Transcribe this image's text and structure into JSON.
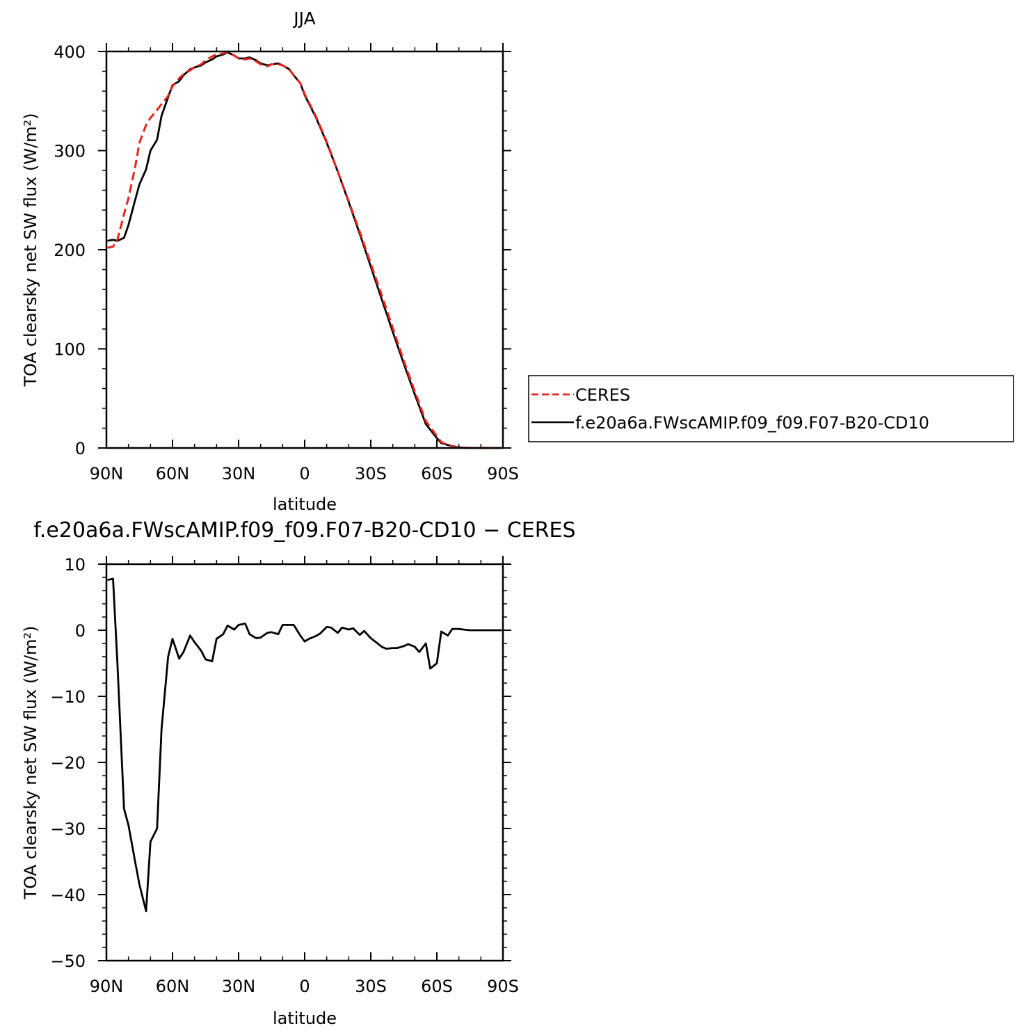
{
  "chart_data": [
    {
      "type": "line",
      "title": "JJA",
      "xlabel": "latitude",
      "ylabel": "TOA clearsky net SW flux (W/m²)",
      "xlim": [
        90,
        -90
      ],
      "ylim": [
        0,
        400
      ],
      "xticks": [
        "90N",
        "60N",
        "30N",
        "0",
        "30S",
        "60S",
        "90S"
      ],
      "yticks": [
        "0",
        "100",
        "200",
        "300",
        "400"
      ],
      "legend_position": "right",
      "series": [
        {
          "name": "CERES",
          "color": "#e8221c",
          "dash": "dashed",
          "x": [
            89.5,
            87,
            85,
            82,
            80,
            77,
            75,
            72,
            70,
            67,
            65,
            62,
            60,
            57,
            55,
            52,
            50,
            47,
            45,
            42,
            40,
            37,
            35,
            32,
            30,
            27,
            25,
            22,
            20,
            17,
            15,
            12,
            10,
            7,
            5,
            2,
            0,
            -5,
            -10,
            -15,
            -20,
            -25,
            -30,
            -35,
            -40,
            -45,
            -50,
            -55,
            -60,
            -62,
            -65,
            -68,
            -70,
            -72,
            -75,
            -78,
            -80,
            -85,
            -89.5
          ],
          "y": [
            202,
            203,
            210,
            236,
            252,
            283,
            308,
            326,
            333,
            341,
            347,
            355,
            365,
            373,
            377,
            381,
            384,
            387,
            391,
            395,
            397,
            398,
            399,
            396,
            393,
            392,
            393,
            390,
            387,
            385,
            387,
            387,
            386,
            382,
            376,
            368,
            357,
            335,
            309,
            279,
            249,
            218,
            186,
            154,
            121,
            88,
            57,
            27,
            12,
            6,
            3,
            1,
            0.5,
            0.3,
            0.1,
            0,
            0,
            0,
            0
          ]
        },
        {
          "name": "f.e20a6a.FWscAMIP.f09_f09.F07-B20-CD10",
          "color": "#000000",
          "dash": "solid",
          "x": [
            89.5,
            87,
            85,
            82,
            80,
            77,
            75,
            72,
            70,
            67,
            65,
            62,
            60,
            57,
            55,
            52,
            50,
            47,
            45,
            42,
            40,
            37,
            35,
            32,
            30,
            27,
            25,
            22,
            20,
            17,
            15,
            12,
            10,
            7,
            5,
            2,
            0,
            -5,
            -10,
            -15,
            -20,
            -25,
            -30,
            -35,
            -40,
            -45,
            -50,
            -55,
            -60,
            -62,
            -65,
            -68,
            -70,
            -72,
            -75,
            -78,
            -80,
            -85,
            -89.5
          ],
          "y": [
            209,
            210,
            209,
            212,
            225,
            250,
            266,
            281,
            300,
            311,
            335,
            354,
            366,
            370,
            376,
            382,
            384,
            386,
            389,
            392,
            395,
            397,
            399,
            396,
            393,
            393,
            394,
            391,
            388,
            386,
            387,
            388,
            386,
            382,
            376,
            368,
            356,
            334,
            308,
            279,
            248,
            216,
            183,
            150,
            117,
            85,
            54,
            24,
            10,
            5,
            3,
            1.5,
            0.5,
            0.3,
            0.1,
            0,
            0,
            0,
            0
          ]
        }
      ]
    },
    {
      "type": "line",
      "title": "f.e20a6a.FWscAMIP.f09_f09.F07-B20-CD10 − CERES",
      "xlabel": "latitude",
      "ylabel": "TOA clearsky net SW flux (W/m²)",
      "xlim": [
        90,
        -90
      ],
      "ylim": [
        -50,
        10
      ],
      "xticks": [
        "90N",
        "60N",
        "30N",
        "0",
        "30S",
        "60S",
        "90S"
      ],
      "yticks": [
        "−50",
        "−40",
        "−30",
        "−20",
        "−10",
        "0",
        "10"
      ],
      "series": [
        {
          "color": "#000000",
          "dash": "solid",
          "x": [
            89.5,
            87,
            85,
            82,
            80,
            77,
            75,
            72,
            70,
            67,
            65,
            62,
            60,
            57,
            55,
            52,
            50,
            47,
            45,
            42,
            40,
            37,
            35,
            32,
            30,
            27,
            25,
            22,
            20,
            17,
            15,
            12,
            10,
            7,
            5,
            2,
            0,
            -2,
            -5,
            -7,
            -10,
            -12,
            -15,
            -17,
            -20,
            -22,
            -25,
            -27,
            -30,
            -32,
            -35,
            -37,
            -40,
            -42,
            -45,
            -47,
            -50,
            -52,
            -55,
            -57,
            -60,
            -62,
            -65,
            -67,
            -70,
            -72,
            -75,
            -77,
            -80,
            -82,
            -85,
            -87,
            -89.5
          ],
          "y": [
            7.6,
            7.8,
            -5,
            -27,
            -29.5,
            -35,
            -38.5,
            -42.5,
            -32,
            -30,
            -15,
            -4,
            -1.3,
            -4.3,
            -3.3,
            -0.8,
            -1.8,
            -3.1,
            -4.4,
            -4.7,
            -1.3,
            -0.6,
            0.7,
            0.1,
            0.8,
            1.0,
            -0.6,
            -1.2,
            -1.1,
            -0.4,
            -0.3,
            -0.6,
            0.8,
            0.8,
            0.8,
            -0.8,
            -1.7,
            -1.3,
            -0.9,
            -0.5,
            0.5,
            0.4,
            -0.4,
            0.4,
            0.1,
            0.3,
            -0.7,
            -0.1,
            -1.2,
            -1.7,
            -2.5,
            -2.8,
            -2.7,
            -2.7,
            -2.4,
            -2.1,
            -2.5,
            -3.3,
            -2.0,
            -5.8,
            -5.0,
            -0.2,
            -0.8,
            0.2,
            0.2,
            0.1,
            0.0,
            0.0,
            0.0,
            0.0,
            0.0,
            0.0,
            0.0
          ]
        }
      ]
    }
  ]
}
